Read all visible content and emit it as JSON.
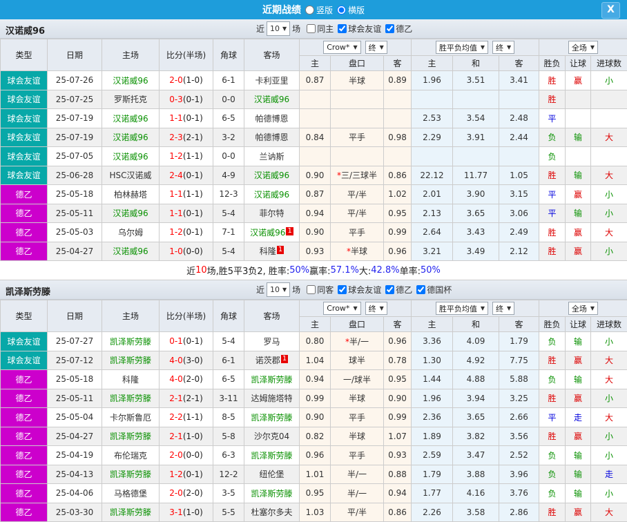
{
  "colors": {
    "titlebar_blue": "#1e9ddb",
    "friendly_teal": "#07a8a8",
    "league_magenta": "#cc00cc",
    "team_green": "#089000",
    "score_red": "#ff0000",
    "win_red": "#dd0000",
    "draw_blue": "#0000dd",
    "lose_green": "#089000",
    "odds_bg": "#fdf6ed",
    "avg_bg": "#eaf4fb"
  },
  "titlebar": {
    "title": "近期战绩",
    "radios": [
      {
        "label": "竖版",
        "checked": false
      },
      {
        "label": "横版",
        "checked": true
      }
    ],
    "close_label": "X"
  },
  "controls_labels": {
    "near": "近",
    "matches": "场",
    "count": "10"
  },
  "table_header": {
    "cols": [
      "类型",
      "日期",
      "主场",
      "比分(半场)",
      "角球",
      "客场"
    ],
    "group1": {
      "dd1": "Crow*",
      "dd2": "终",
      "subs": [
        "主",
        "盘口",
        "客"
      ]
    },
    "group2": {
      "dd1": "胜平负均值",
      "dd2": "终",
      "subs": [
        "主",
        "和",
        "客"
      ]
    },
    "group3": {
      "dd": "全场",
      "subs": [
        "胜负",
        "让球",
        "进球数"
      ]
    }
  },
  "sections": [
    {
      "team": "汉诺威96",
      "controls": {
        "same_label": "同主",
        "same_checked": false,
        "filters": [
          {
            "label": "球会友谊",
            "checked": true
          },
          {
            "label": "德乙",
            "checked": true
          }
        ]
      },
      "rows": [
        {
          "type": "球会友谊",
          "tc": "friendly",
          "date": "25-07-26",
          "home": "汉诺威96",
          "hg": true,
          "hb": "",
          "score": "2-0",
          "half": "(1-0)",
          "corner": "6-1",
          "away": "卡利亚里",
          "ag": false,
          "ab": "",
          "o1": "0.87",
          "hcap": "半球",
          "star": false,
          "o2": "0.89",
          "a1": "1.96",
          "a2": "3.51",
          "a3": "3.41",
          "r1": "胜",
          "r2": "赢",
          "r3": "小"
        },
        {
          "type": "球会友谊",
          "tc": "friendly",
          "date": "25-07-25",
          "home": "罗斯托克",
          "hg": false,
          "hb": "",
          "score": "0-3",
          "half": "(0-1)",
          "corner": "0-0",
          "away": "汉诺威96",
          "ag": true,
          "ab": "",
          "o1": "",
          "hcap": "",
          "star": false,
          "o2": "",
          "a1": "",
          "a2": "",
          "a3": "",
          "r1": "胜",
          "r2": "",
          "r3": ""
        },
        {
          "type": "球会友谊",
          "tc": "friendly",
          "date": "25-07-19",
          "home": "汉诺威96",
          "hg": true,
          "hb": "",
          "score": "1-1",
          "half": "(0-1)",
          "corner": "6-5",
          "away": "帕德博恩",
          "ag": false,
          "ab": "",
          "o1": "",
          "hcap": "",
          "star": false,
          "o2": "",
          "a1": "2.53",
          "a2": "3.54",
          "a3": "2.48",
          "r1": "平",
          "r2": "",
          "r3": ""
        },
        {
          "type": "球会友谊",
          "tc": "friendly",
          "date": "25-07-19",
          "home": "汉诺威96",
          "hg": true,
          "hb": "",
          "score": "2-3",
          "half": "(2-1)",
          "corner": "3-2",
          "away": "帕德博恩",
          "ag": false,
          "ab": "",
          "o1": "0.84",
          "hcap": "平手",
          "star": false,
          "o2": "0.98",
          "a1": "2.29",
          "a2": "3.91",
          "a3": "2.44",
          "r1": "负",
          "r2": "输",
          "r3": "大"
        },
        {
          "type": "球会友谊",
          "tc": "friendly",
          "date": "25-07-05",
          "home": "汉诺威96",
          "hg": true,
          "hb": "",
          "score": "1-2",
          "half": "(1-1)",
          "corner": "0-0",
          "away": "兰讷斯",
          "ag": false,
          "ab": "",
          "o1": "",
          "hcap": "",
          "star": false,
          "o2": "",
          "a1": "",
          "a2": "",
          "a3": "",
          "r1": "负",
          "r2": "",
          "r3": ""
        },
        {
          "type": "球会友谊",
          "tc": "friendly",
          "date": "25-06-28",
          "home": "HSC汉诺威",
          "hg": false,
          "hb": "",
          "score": "2-4",
          "half": "(0-1)",
          "corner": "4-9",
          "away": "汉诺威96",
          "ag": true,
          "ab": "",
          "o1": "0.90",
          "hcap": "三/三球半",
          "star": true,
          "o2": "0.86",
          "a1": "22.12",
          "a2": "11.77",
          "a3": "1.05",
          "r1": "胜",
          "r2": "输",
          "r3": "大"
        },
        {
          "type": "德乙",
          "tc": "league",
          "date": "25-05-18",
          "home": "柏林赫塔",
          "hg": false,
          "hb": "",
          "score": "1-1",
          "half": "(1-1)",
          "corner": "12-3",
          "away": "汉诺威96",
          "ag": true,
          "ab": "",
          "o1": "0.87",
          "hcap": "平/半",
          "star": false,
          "o2": "1.02",
          "a1": "2.01",
          "a2": "3.90",
          "a3": "3.15",
          "r1": "平",
          "r2": "赢",
          "r3": "小"
        },
        {
          "type": "德乙",
          "tc": "league",
          "date": "25-05-11",
          "home": "汉诺威96",
          "hg": true,
          "hb": "",
          "score": "1-1",
          "half": "(0-1)",
          "corner": "5-4",
          "away": "菲尔特",
          "ag": false,
          "ab": "",
          "o1": "0.94",
          "hcap": "平/半",
          "star": false,
          "o2": "0.95",
          "a1": "2.13",
          "a2": "3.65",
          "a3": "3.06",
          "r1": "平",
          "r2": "输",
          "r3": "小"
        },
        {
          "type": "德乙",
          "tc": "league",
          "date": "25-05-03",
          "home": "乌尔姆",
          "hg": false,
          "hb": "",
          "score": "1-2",
          "half": "(0-1)",
          "corner": "7-1",
          "away": "汉诺威96",
          "ag": true,
          "ab": "1",
          "o1": "0.90",
          "hcap": "平手",
          "star": false,
          "o2": "0.99",
          "a1": "2.64",
          "a2": "3.43",
          "a3": "2.49",
          "r1": "胜",
          "r2": "赢",
          "r3": "大"
        },
        {
          "type": "德乙",
          "tc": "league",
          "date": "25-04-27",
          "home": "汉诺威96",
          "hg": true,
          "hb": "",
          "score": "1-0",
          "half": "(0-0)",
          "corner": "5-4",
          "away": "科隆",
          "ag": false,
          "ab": "1",
          "o1": "0.93",
          "hcap": "半球",
          "star": true,
          "o2": "0.96",
          "a1": "3.21",
          "a2": "3.49",
          "a3": "2.12",
          "r1": "胜",
          "r2": "赢",
          "r3": "小"
        }
      ],
      "summary": [
        {
          "t": "近",
          "c": "k"
        },
        {
          "t": "10",
          "c": "r"
        },
        {
          "t": "场,胜5平3负2, 胜率:",
          "c": "k"
        },
        {
          "t": "50%",
          "c": "b"
        },
        {
          "t": " 赢率:",
          "c": "k"
        },
        {
          "t": "57.1%",
          "c": "b"
        },
        {
          "t": " 大:",
          "c": "k"
        },
        {
          "t": "42.8%",
          "c": "b"
        },
        {
          "t": " 单率:",
          "c": "k"
        },
        {
          "t": "50%",
          "c": "b"
        }
      ]
    },
    {
      "team": "凯泽斯劳滕",
      "controls": {
        "same_label": "同客",
        "same_checked": false,
        "filters": [
          {
            "label": "球会友谊",
            "checked": true
          },
          {
            "label": "德乙",
            "checked": true
          },
          {
            "label": "德国杯",
            "checked": true
          }
        ]
      },
      "rows": [
        {
          "type": "球会友谊",
          "tc": "friendly",
          "date": "25-07-27",
          "home": "凯泽斯劳滕",
          "hg": true,
          "hb": "",
          "score": "0-1",
          "half": "(0-1)",
          "corner": "5-4",
          "away": "罗马",
          "ag": false,
          "ab": "",
          "o1": "0.80",
          "hcap": "半/一",
          "star": true,
          "o2": "0.96",
          "a1": "3.36",
          "a2": "4.09",
          "a3": "1.79",
          "r1": "负",
          "r2": "输",
          "r3": "小"
        },
        {
          "type": "球会友谊",
          "tc": "friendly",
          "date": "25-07-12",
          "home": "凯泽斯劳滕",
          "hg": true,
          "hb": "",
          "score": "4-0",
          "half": "(3-0)",
          "corner": "6-1",
          "away": "诺茨郡",
          "ag": false,
          "ab": "1",
          "o1": "1.04",
          "hcap": "球半",
          "star": false,
          "o2": "0.78",
          "a1": "1.30",
          "a2": "4.92",
          "a3": "7.75",
          "r1": "胜",
          "r2": "赢",
          "r3": "大"
        },
        {
          "type": "德乙",
          "tc": "league",
          "date": "25-05-18",
          "home": "科隆",
          "hg": false,
          "hb": "",
          "score": "4-0",
          "half": "(2-0)",
          "corner": "6-5",
          "away": "凯泽斯劳滕",
          "ag": true,
          "ab": "",
          "o1": "0.94",
          "hcap": "一/球半",
          "star": false,
          "o2": "0.95",
          "a1": "1.44",
          "a2": "4.88",
          "a3": "5.88",
          "r1": "负",
          "r2": "输",
          "r3": "大"
        },
        {
          "type": "德乙",
          "tc": "league",
          "date": "25-05-11",
          "home": "凯泽斯劳滕",
          "hg": true,
          "hb": "",
          "score": "2-1",
          "half": "(2-1)",
          "corner": "3-11",
          "away": "达姆施塔特",
          "ag": false,
          "ab": "",
          "o1": "0.99",
          "hcap": "半球",
          "star": false,
          "o2": "0.90",
          "a1": "1.96",
          "a2": "3.94",
          "a3": "3.25",
          "r1": "胜",
          "r2": "赢",
          "r3": "小"
        },
        {
          "type": "德乙",
          "tc": "league",
          "date": "25-05-04",
          "home": "卡尔斯鲁厄",
          "hg": false,
          "hb": "",
          "score": "2-2",
          "half": "(1-1)",
          "corner": "8-5",
          "away": "凯泽斯劳滕",
          "ag": true,
          "ab": "",
          "o1": "0.90",
          "hcap": "平手",
          "star": false,
          "o2": "0.99",
          "a1": "2.36",
          "a2": "3.65",
          "a3": "2.66",
          "r1": "平",
          "r2": "走",
          "r3": "大"
        },
        {
          "type": "德乙",
          "tc": "league",
          "date": "25-04-27",
          "home": "凯泽斯劳滕",
          "hg": true,
          "hb": "",
          "score": "2-1",
          "half": "(1-0)",
          "corner": "5-8",
          "away": "沙尔克04",
          "ag": false,
          "ab": "",
          "o1": "0.82",
          "hcap": "半球",
          "star": false,
          "o2": "1.07",
          "a1": "1.89",
          "a2": "3.82",
          "a3": "3.56",
          "r1": "胜",
          "r2": "赢",
          "r3": "小"
        },
        {
          "type": "德乙",
          "tc": "league",
          "date": "25-04-19",
          "home": "布伦瑞克",
          "hg": false,
          "hb": "",
          "score": "2-0",
          "half": "(0-0)",
          "corner": "6-3",
          "away": "凯泽斯劳滕",
          "ag": true,
          "ab": "",
          "o1": "0.96",
          "hcap": "平手",
          "star": false,
          "o2": "0.93",
          "a1": "2.59",
          "a2": "3.47",
          "a3": "2.52",
          "r1": "负",
          "r2": "输",
          "r3": "小"
        },
        {
          "type": "德乙",
          "tc": "league",
          "date": "25-04-13",
          "home": "凯泽斯劳滕",
          "hg": true,
          "hb": "",
          "score": "1-2",
          "half": "(0-1)",
          "corner": "12-2",
          "away": "纽伦堡",
          "ag": false,
          "ab": "",
          "o1": "1.01",
          "hcap": "半/一",
          "star": false,
          "o2": "0.88",
          "a1": "1.79",
          "a2": "3.88",
          "a3": "3.96",
          "r1": "负",
          "r2": "输",
          "r3": "走"
        },
        {
          "type": "德乙",
          "tc": "league",
          "date": "25-04-06",
          "home": "马格德堡",
          "hg": false,
          "hb": "",
          "score": "2-0",
          "half": "(2-0)",
          "corner": "3-5",
          "away": "凯泽斯劳滕",
          "ag": true,
          "ab": "",
          "o1": "0.95",
          "hcap": "半/一",
          "star": false,
          "o2": "0.94",
          "a1": "1.77",
          "a2": "4.16",
          "a3": "3.76",
          "r1": "负",
          "r2": "输",
          "r3": "小"
        },
        {
          "type": "德乙",
          "tc": "league",
          "date": "25-03-30",
          "home": "凯泽斯劳滕",
          "hg": true,
          "hb": "",
          "score": "3-1",
          "half": "(1-0)",
          "corner": "5-5",
          "away": "杜塞尔多夫",
          "ag": false,
          "ab": "",
          "o1": "1.03",
          "hcap": "平/半",
          "star": false,
          "o2": "0.86",
          "a1": "2.26",
          "a2": "3.58",
          "a3": "2.86",
          "r1": "胜",
          "r2": "赢",
          "r3": "大"
        }
      ],
      "summary": null
    }
  ]
}
